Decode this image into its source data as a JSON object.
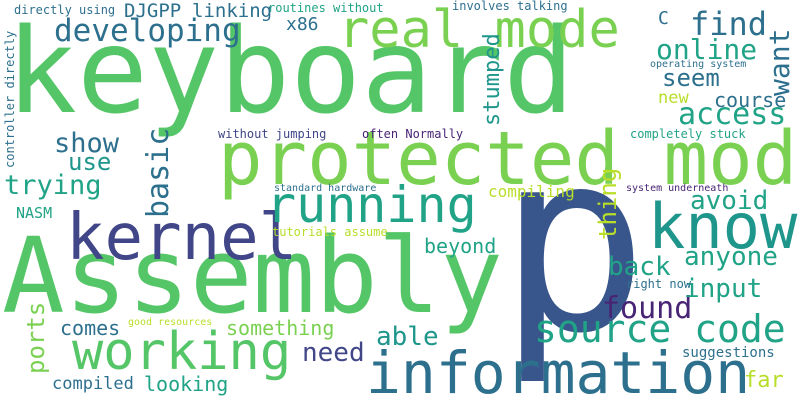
{
  "cloud": {
    "words": [
      "keyboard",
      "p",
      "protected mode",
      "Assembly",
      "information",
      "real mode",
      "kernel",
      "know",
      "running",
      "working",
      "source code",
      "developing",
      "find",
      "access",
      "online",
      "found",
      "seem",
      "want",
      "basic",
      "trying",
      "thing",
      "show",
      "avoid",
      "anyone",
      "back",
      "input",
      "need",
      "able",
      "ports",
      "use",
      "stumped",
      "course",
      "beyond",
      "something",
      "comes",
      "looking",
      "far",
      "DJGPP",
      "linking",
      "x86",
      "new",
      "compiled",
      "compiling",
      "suggestions",
      "C",
      "NASM",
      "routines without",
      "involves talking",
      "directly using",
      "controller directly",
      "operating system",
      "without jumping",
      "often Normally",
      "completely stuck",
      "standard hardware",
      "system underneath",
      "tutorials assume",
      "right now",
      "good resources"
    ]
  },
  "colors": {
    "bright_green": "#55c667",
    "green": "#7ad151",
    "teal": "#1f968b",
    "teal_light": "#20a386",
    "blue": "#39568c",
    "navy": "#404688",
    "purple": "#482475",
    "dark_purple": "#3d0c52",
    "yellow_green": "#b8de29",
    "steel": "#2d708e"
  }
}
